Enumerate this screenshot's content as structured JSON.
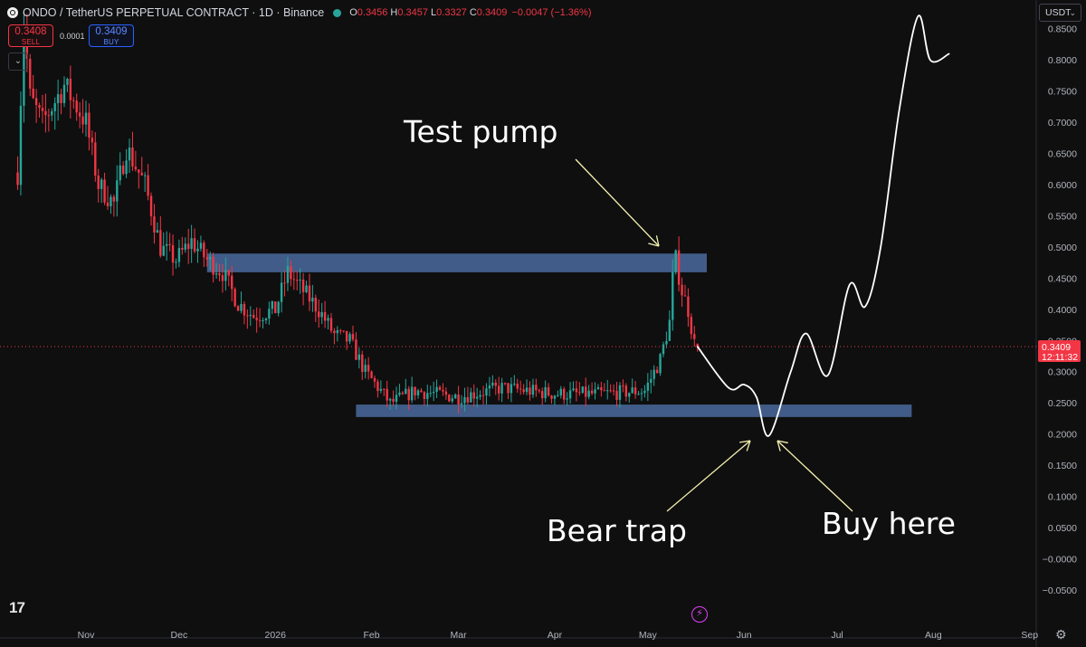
{
  "header": {
    "symbol_line": "ONDO / TetherUS PERPETUAL CONTRACT · 1D · Binance",
    "open_key": "O",
    "open": "0.3456",
    "high_key": "H",
    "high": "0.3457",
    "low_key": "L",
    "low": "0.3327",
    "close_key": "C",
    "close": "0.3409",
    "change": "−0.0047 (−1.36%)"
  },
  "trade": {
    "sell_price": "0.3408",
    "sell_label": "SELL",
    "spread": "0.0001",
    "buy_price": "0.3409",
    "buy_label": "BUY"
  },
  "currency_selector": "USDT",
  "collapse_icon": "chevron-down-icon",
  "price_tag": {
    "price": "0.3409",
    "countdown": "12:11:32"
  },
  "annotations": {
    "test_pump": "Test pump",
    "bear_trap": "Bear trap",
    "buy_here": "Buy here"
  },
  "colors": {
    "background": "#0f0f0f",
    "up": "#26a69a",
    "down": "#f23645",
    "zone": "#4a6a9e",
    "drawing": "#ffffff",
    "arrow": "#f5f1b0"
  },
  "chart_data": {
    "type": "candlestick",
    "title": "",
    "y_ticks": [
      "0.8500",
      "0.8000",
      "0.7500",
      "0.7000",
      "0.6500",
      "0.6000",
      "0.5500",
      "0.5000",
      "0.4500",
      "0.4000",
      "0.3500",
      "0.3000",
      "0.2500",
      "0.2000",
      "0.1500",
      "0.1000",
      "0.0500",
      "−0.0000",
      "−0.0500"
    ],
    "y_tick_values": [
      0.85,
      0.8,
      0.75,
      0.7,
      0.65,
      0.6,
      0.55,
      0.5,
      0.45,
      0.4,
      0.35,
      0.3,
      0.25,
      0.2,
      0.15,
      0.1,
      0.05,
      0,
      -0.05
    ],
    "x_ticks": [
      "Nov",
      "Dec",
      "2026",
      "Feb",
      "Mar",
      "Apr",
      "May",
      "Jun",
      "Jul",
      "Aug",
      "Sep"
    ],
    "x_tick_dates": [
      "2025-11-01",
      "2025-12-01",
      "2026-01-01",
      "2026-02-01",
      "2026-03-01",
      "2026-04-01",
      "2026-05-01",
      "2026-06-01",
      "2026-07-01",
      "2026-08-01",
      "2026-09-01"
    ],
    "last_price": 0.3409,
    "resistance_zone": {
      "from": "2025-12-10",
      "to": "2026-05-20",
      "low": 0.46,
      "high": 0.49
    },
    "support_zone": {
      "from": "2026-01-27",
      "to": "2026-07-25",
      "low": 0.228,
      "high": 0.248
    },
    "price_path": [
      [
        "2025-10-10",
        0.62
      ],
      [
        "2025-10-12",
        0.86
      ],
      [
        "2025-10-14",
        0.74
      ],
      [
        "2025-10-18",
        0.7
      ],
      [
        "2025-10-25",
        0.76
      ],
      [
        "2025-11-01",
        0.7
      ],
      [
        "2025-11-05",
        0.6
      ],
      [
        "2025-11-10",
        0.57
      ],
      [
        "2025-11-14",
        0.66
      ],
      [
        "2025-11-20",
        0.6
      ],
      [
        "2025-11-25",
        0.5
      ],
      [
        "2025-11-30",
        0.48
      ],
      [
        "2025-12-05",
        0.51
      ],
      [
        "2025-12-10",
        0.48
      ],
      [
        "2025-12-15",
        0.46
      ],
      [
        "2025-12-20",
        0.41
      ],
      [
        "2025-12-25",
        0.39
      ],
      [
        "2026-01-01",
        0.4
      ],
      [
        "2026-01-05",
        0.46
      ],
      [
        "2026-01-10",
        0.43
      ],
      [
        "2026-01-15",
        0.4
      ],
      [
        "2026-01-20",
        0.36
      ],
      [
        "2026-01-25",
        0.35
      ],
      [
        "2026-01-30",
        0.3
      ],
      [
        "2026-02-04",
        0.27
      ],
      [
        "2026-02-07",
        0.25
      ],
      [
        "2026-02-15",
        0.27
      ],
      [
        "2026-03-01",
        0.26
      ],
      [
        "2026-03-15",
        0.275
      ],
      [
        "2026-04-01",
        0.265
      ],
      [
        "2026-04-15",
        0.265
      ],
      [
        "2026-04-30",
        0.27
      ],
      [
        "2026-05-05",
        0.32
      ],
      [
        "2026-05-08",
        0.38
      ],
      [
        "2026-05-09",
        0.45
      ],
      [
        "2026-05-10",
        0.48
      ],
      [
        "2026-05-12",
        0.43
      ],
      [
        "2026-05-14",
        0.4
      ],
      [
        "2026-05-16",
        0.3456
      ],
      [
        "2026-05-17",
        0.3409
      ]
    ],
    "projection": [
      [
        "2026-05-17",
        0.3409
      ],
      [
        "2026-05-27",
        0.275
      ],
      [
        "2026-06-01",
        0.28
      ],
      [
        "2026-06-05",
        0.26
      ],
      [
        "2026-06-09",
        0.198
      ],
      [
        "2026-06-16",
        0.3
      ],
      [
        "2026-06-21",
        0.362
      ],
      [
        "2026-06-28",
        0.295
      ],
      [
        "2026-07-05",
        0.44
      ],
      [
        "2026-07-10",
        0.405
      ],
      [
        "2026-07-15",
        0.5
      ],
      [
        "2026-07-21",
        0.72
      ],
      [
        "2026-07-27",
        0.87
      ],
      [
        "2026-07-31",
        0.8
      ],
      [
        "2026-08-06",
        0.81
      ]
    ]
  }
}
